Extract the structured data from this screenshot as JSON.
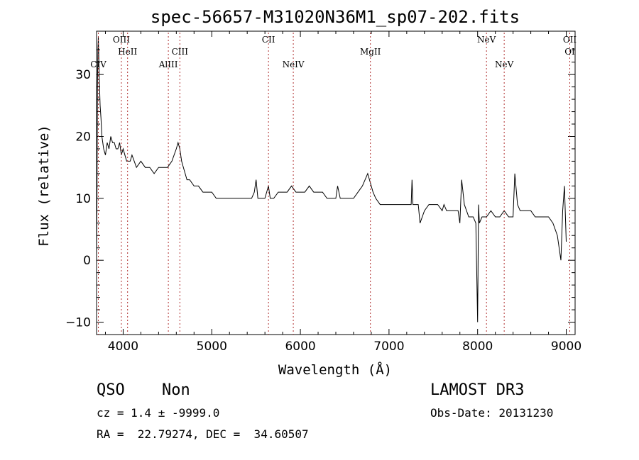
{
  "chart_data": {
    "type": "line",
    "title": "spec-56657-M31020N36M1_sp07-202.fits",
    "xlabel": "Wavelength (Å)",
    "ylabel": "Flux (relative)",
    "xlim": [
      3700,
      9100
    ],
    "ylim": [
      -12,
      37
    ],
    "xticks": [
      4000,
      5000,
      6000,
      7000,
      8000,
      9000
    ],
    "yticks": [
      -10,
      0,
      10,
      20,
      30
    ],
    "grid": false,
    "series": [
      {
        "values_x": [
          3700,
          3705,
          3710,
          3715,
          3720,
          3730,
          3740,
          3750,
          3760,
          3780,
          3800,
          3820,
          3840,
          3860,
          3880,
          3900,
          3920,
          3940,
          3960,
          3980,
          4000,
          4020,
          4040,
          4060,
          4080,
          4100,
          4150,
          4200,
          4250,
          4300,
          4350,
          4400,
          4450,
          4500,
          4550,
          4600,
          4620,
          4640,
          4660,
          4680,
          4700,
          4720,
          4750,
          4800,
          4850,
          4900,
          4950,
          5000,
          5050,
          5100,
          5150,
          5200,
          5250,
          5300,
          5350,
          5400,
          5450,
          5480,
          5500,
          5520,
          5550,
          5600,
          5640,
          5660,
          5700,
          5750,
          5800,
          5850,
          5900,
          5950,
          6000,
          6050,
          6100,
          6150,
          6200,
          6250,
          6300,
          6350,
          6400,
          6420,
          6450,
          6500,
          6550,
          6600,
          6650,
          6700,
          6730,
          6760,
          6780,
          6800,
          6820,
          6850,
          6900,
          6950,
          7000,
          7050,
          7100,
          7150,
          7200,
          7250,
          7260,
          7270,
          7300,
          7330,
          7350,
          7400,
          7450,
          7500,
          7550,
          7600,
          7620,
          7650,
          7700,
          7750,
          7780,
          7800,
          7820,
          7850,
          7900,
          7950,
          7980,
          8000,
          8010,
          8020,
          8050,
          8080,
          8100,
          8150,
          8200,
          8250,
          8300,
          8350,
          8400,
          8420,
          8450,
          8480,
          8500,
          8550,
          8600,
          8650,
          8700,
          8750,
          8800,
          8850,
          8900,
          8920,
          8940,
          8960,
          8980,
          9000
        ],
        "values_y": [
          0,
          10,
          28,
          34,
          36,
          30,
          25,
          23,
          20,
          18,
          17,
          19,
          18,
          20,
          19,
          19,
          18,
          18,
          19,
          17,
          18,
          17,
          16,
          16,
          16,
          17,
          15,
          16,
          15,
          15,
          14,
          15,
          15,
          15,
          16,
          18,
          19,
          18,
          16,
          15,
          14,
          13,
          13,
          12,
          12,
          11,
          11,
          11,
          10,
          10,
          10,
          10,
          10,
          10,
          10,
          10,
          10,
          11,
          13,
          10,
          10,
          10,
          12,
          10,
          10,
          11,
          11,
          11,
          12,
          11,
          11,
          11,
          12,
          11,
          11,
          11,
          10,
          10,
          10,
          12,
          10,
          10,
          10,
          10,
          11,
          12,
          13,
          14,
          13,
          12,
          11,
          10,
          9,
          9,
          9,
          9,
          9,
          9,
          9,
          9,
          13,
          9,
          9,
          9,
          6,
          8,
          9,
          9,
          9,
          8,
          9,
          8,
          8,
          8,
          8,
          6,
          13,
          9,
          7,
          7,
          6,
          -10,
          9,
          6,
          7,
          7,
          7,
          8,
          7,
          7,
          8,
          7,
          7,
          14,
          9,
          8,
          8,
          8,
          8,
          7,
          7,
          7,
          7,
          6,
          4,
          2,
          0,
          8,
          12,
          3
        ],
        "color": "#000000"
      }
    ],
    "line_markers": [
      {
        "name": "CIV",
        "x": 3720,
        "row": 3
      },
      {
        "name": "OIII",
        "x": 3980,
        "row": 1
      },
      {
        "name": "HeII",
        "x": 4050,
        "row": 2
      },
      {
        "name": "AlIII",
        "x": 4510,
        "row": 3
      },
      {
        "name": "CIII",
        "x": 4640,
        "row": 2
      },
      {
        "name": "CII",
        "x": 5640,
        "row": 1
      },
      {
        "name": "NeIV",
        "x": 5920,
        "row": 3
      },
      {
        "name": "MgII",
        "x": 6790,
        "row": 2
      },
      {
        "name": "NeV",
        "x": 8100,
        "row": 1
      },
      {
        "name": "NeV",
        "x": 8300,
        "row": 3
      },
      {
        "name": "OII",
        "x": 9040,
        "row": 1
      },
      {
        "name": "OI",
        "x": 9040,
        "row": 2
      }
    ]
  },
  "info": {
    "object_class": "QSO",
    "subclass": "Non",
    "survey": "LAMOST DR3",
    "redshift": "cz = 1.4 ± -9999.0",
    "obs_date": "Obs-Date: 20131230",
    "coords": "RA =  22.79274, DEC =  34.60507"
  }
}
